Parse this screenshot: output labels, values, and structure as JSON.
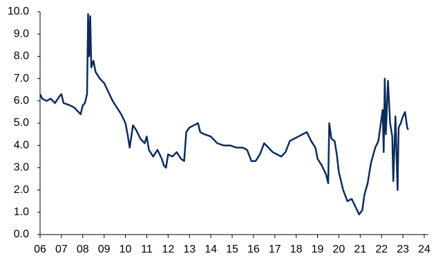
{
  "chart_data": {
    "type": "line",
    "color": "#0c2c5c",
    "grid": false,
    "xlim": [
      2006,
      2024
    ],
    "ylim": [
      0,
      10
    ],
    "xticks": [
      {
        "value": 2006,
        "label": "06"
      },
      {
        "value": 2007,
        "label": "07"
      },
      {
        "value": 2008,
        "label": "08"
      },
      {
        "value": 2009,
        "label": "09"
      },
      {
        "value": 2010,
        "label": "10"
      },
      {
        "value": 2011,
        "label": "11"
      },
      {
        "value": 2012,
        "label": "12"
      },
      {
        "value": 2013,
        "label": "13"
      },
      {
        "value": 2014,
        "label": "14"
      },
      {
        "value": 2015,
        "label": "15"
      },
      {
        "value": 2016,
        "label": "16"
      },
      {
        "value": 2017,
        "label": "17"
      },
      {
        "value": 2018,
        "label": "18"
      },
      {
        "value": 2019,
        "label": "19"
      },
      {
        "value": 2020,
        "label": "20"
      },
      {
        "value": 2021,
        "label": "21"
      },
      {
        "value": 2022,
        "label": "22"
      },
      {
        "value": 2023,
        "label": "23"
      },
      {
        "value": 2024,
        "label": "24"
      }
    ],
    "yticks": [
      {
        "value": 0,
        "label": "0.0"
      },
      {
        "value": 1,
        "label": "1.0"
      },
      {
        "value": 2,
        "label": "2.0"
      },
      {
        "value": 3,
        "label": "3.0"
      },
      {
        "value": 4,
        "label": "4.0"
      },
      {
        "value": 5,
        "label": "5.0"
      },
      {
        "value": 6,
        "label": "6.0"
      },
      {
        "value": 7,
        "label": "7.0"
      },
      {
        "value": 8,
        "label": "8.0"
      },
      {
        "value": 9,
        "label": "9.0"
      },
      {
        "value": 10,
        "label": "10.0"
      }
    ],
    "x": [
      2006.0,
      2006.1,
      2006.3,
      2006.5,
      2006.7,
      2006.9,
      2007.0,
      2007.1,
      2007.4,
      2007.6,
      2007.8,
      2007.9,
      2008.0,
      2008.1,
      2008.2,
      2008.25,
      2008.3,
      2008.35,
      2008.4,
      2008.5,
      2008.6,
      2008.8,
      2009.0,
      2009.2,
      2009.4,
      2009.6,
      2009.8,
      2010.0,
      2010.1,
      2010.2,
      2010.35,
      2010.5,
      2010.7,
      2010.9,
      2011.0,
      2011.1,
      2011.3,
      2011.5,
      2011.7,
      2011.8,
      2011.9,
      2012.0,
      2012.2,
      2012.4,
      2012.6,
      2012.75,
      2012.85,
      2013.0,
      2013.2,
      2013.4,
      2013.5,
      2013.7,
      2014.0,
      2014.3,
      2014.6,
      2014.9,
      2015.2,
      2015.5,
      2015.7,
      2015.9,
      2016.1,
      2016.3,
      2016.5,
      2016.7,
      2016.9,
      2017.1,
      2017.3,
      2017.5,
      2017.7,
      2017.9,
      2018.1,
      2018.3,
      2018.5,
      2018.7,
      2018.9,
      2019.0,
      2019.2,
      2019.4,
      2019.5,
      2019.55,
      2019.65,
      2019.8,
      2019.9,
      2020.0,
      2020.2,
      2020.4,
      2020.6,
      2020.8,
      2020.95,
      2021.1,
      2021.2,
      2021.35,
      2021.5,
      2021.7,
      2021.85,
      2021.95,
      2022.05,
      2022.1,
      2022.15,
      2022.2,
      2022.3,
      2022.4,
      2022.5,
      2022.55,
      2022.65,
      2022.75,
      2022.8,
      2022.9,
      2023.0,
      2023.1,
      2023.2,
      2023.25
    ],
    "values": [
      6.3,
      6.1,
      6.0,
      6.1,
      5.9,
      6.2,
      6.3,
      5.9,
      5.8,
      5.7,
      5.5,
      5.4,
      5.8,
      5.9,
      6.3,
      9.9,
      8.0,
      9.8,
      7.5,
      7.8,
      7.3,
      7.0,
      6.8,
      6.4,
      6.0,
      5.7,
      5.4,
      5.0,
      4.5,
      3.9,
      4.9,
      4.7,
      4.3,
      4.1,
      4.4,
      3.8,
      3.5,
      3.8,
      3.4,
      3.1,
      3.0,
      3.6,
      3.5,
      3.7,
      3.4,
      3.3,
      4.6,
      4.8,
      4.9,
      5.0,
      4.6,
      4.5,
      4.4,
      4.1,
      4.0,
      4.0,
      3.9,
      3.9,
      3.8,
      3.3,
      3.3,
      3.6,
      4.1,
      3.9,
      3.7,
      3.6,
      3.5,
      3.7,
      4.2,
      4.3,
      4.4,
      4.5,
      4.6,
      4.2,
      3.9,
      3.4,
      3.1,
      2.7,
      2.3,
      5.0,
      4.3,
      4.2,
      3.6,
      2.8,
      2.0,
      1.5,
      1.6,
      1.2,
      0.9,
      1.1,
      1.8,
      2.3,
      3.2,
      3.9,
      4.2,
      4.9,
      5.6,
      3.7,
      7.0,
      4.5,
      6.9,
      5.0,
      4.4,
      2.4,
      5.3,
      2.0,
      4.8,
      5.0,
      5.3,
      5.5,
      4.8,
      4.7
    ]
  }
}
